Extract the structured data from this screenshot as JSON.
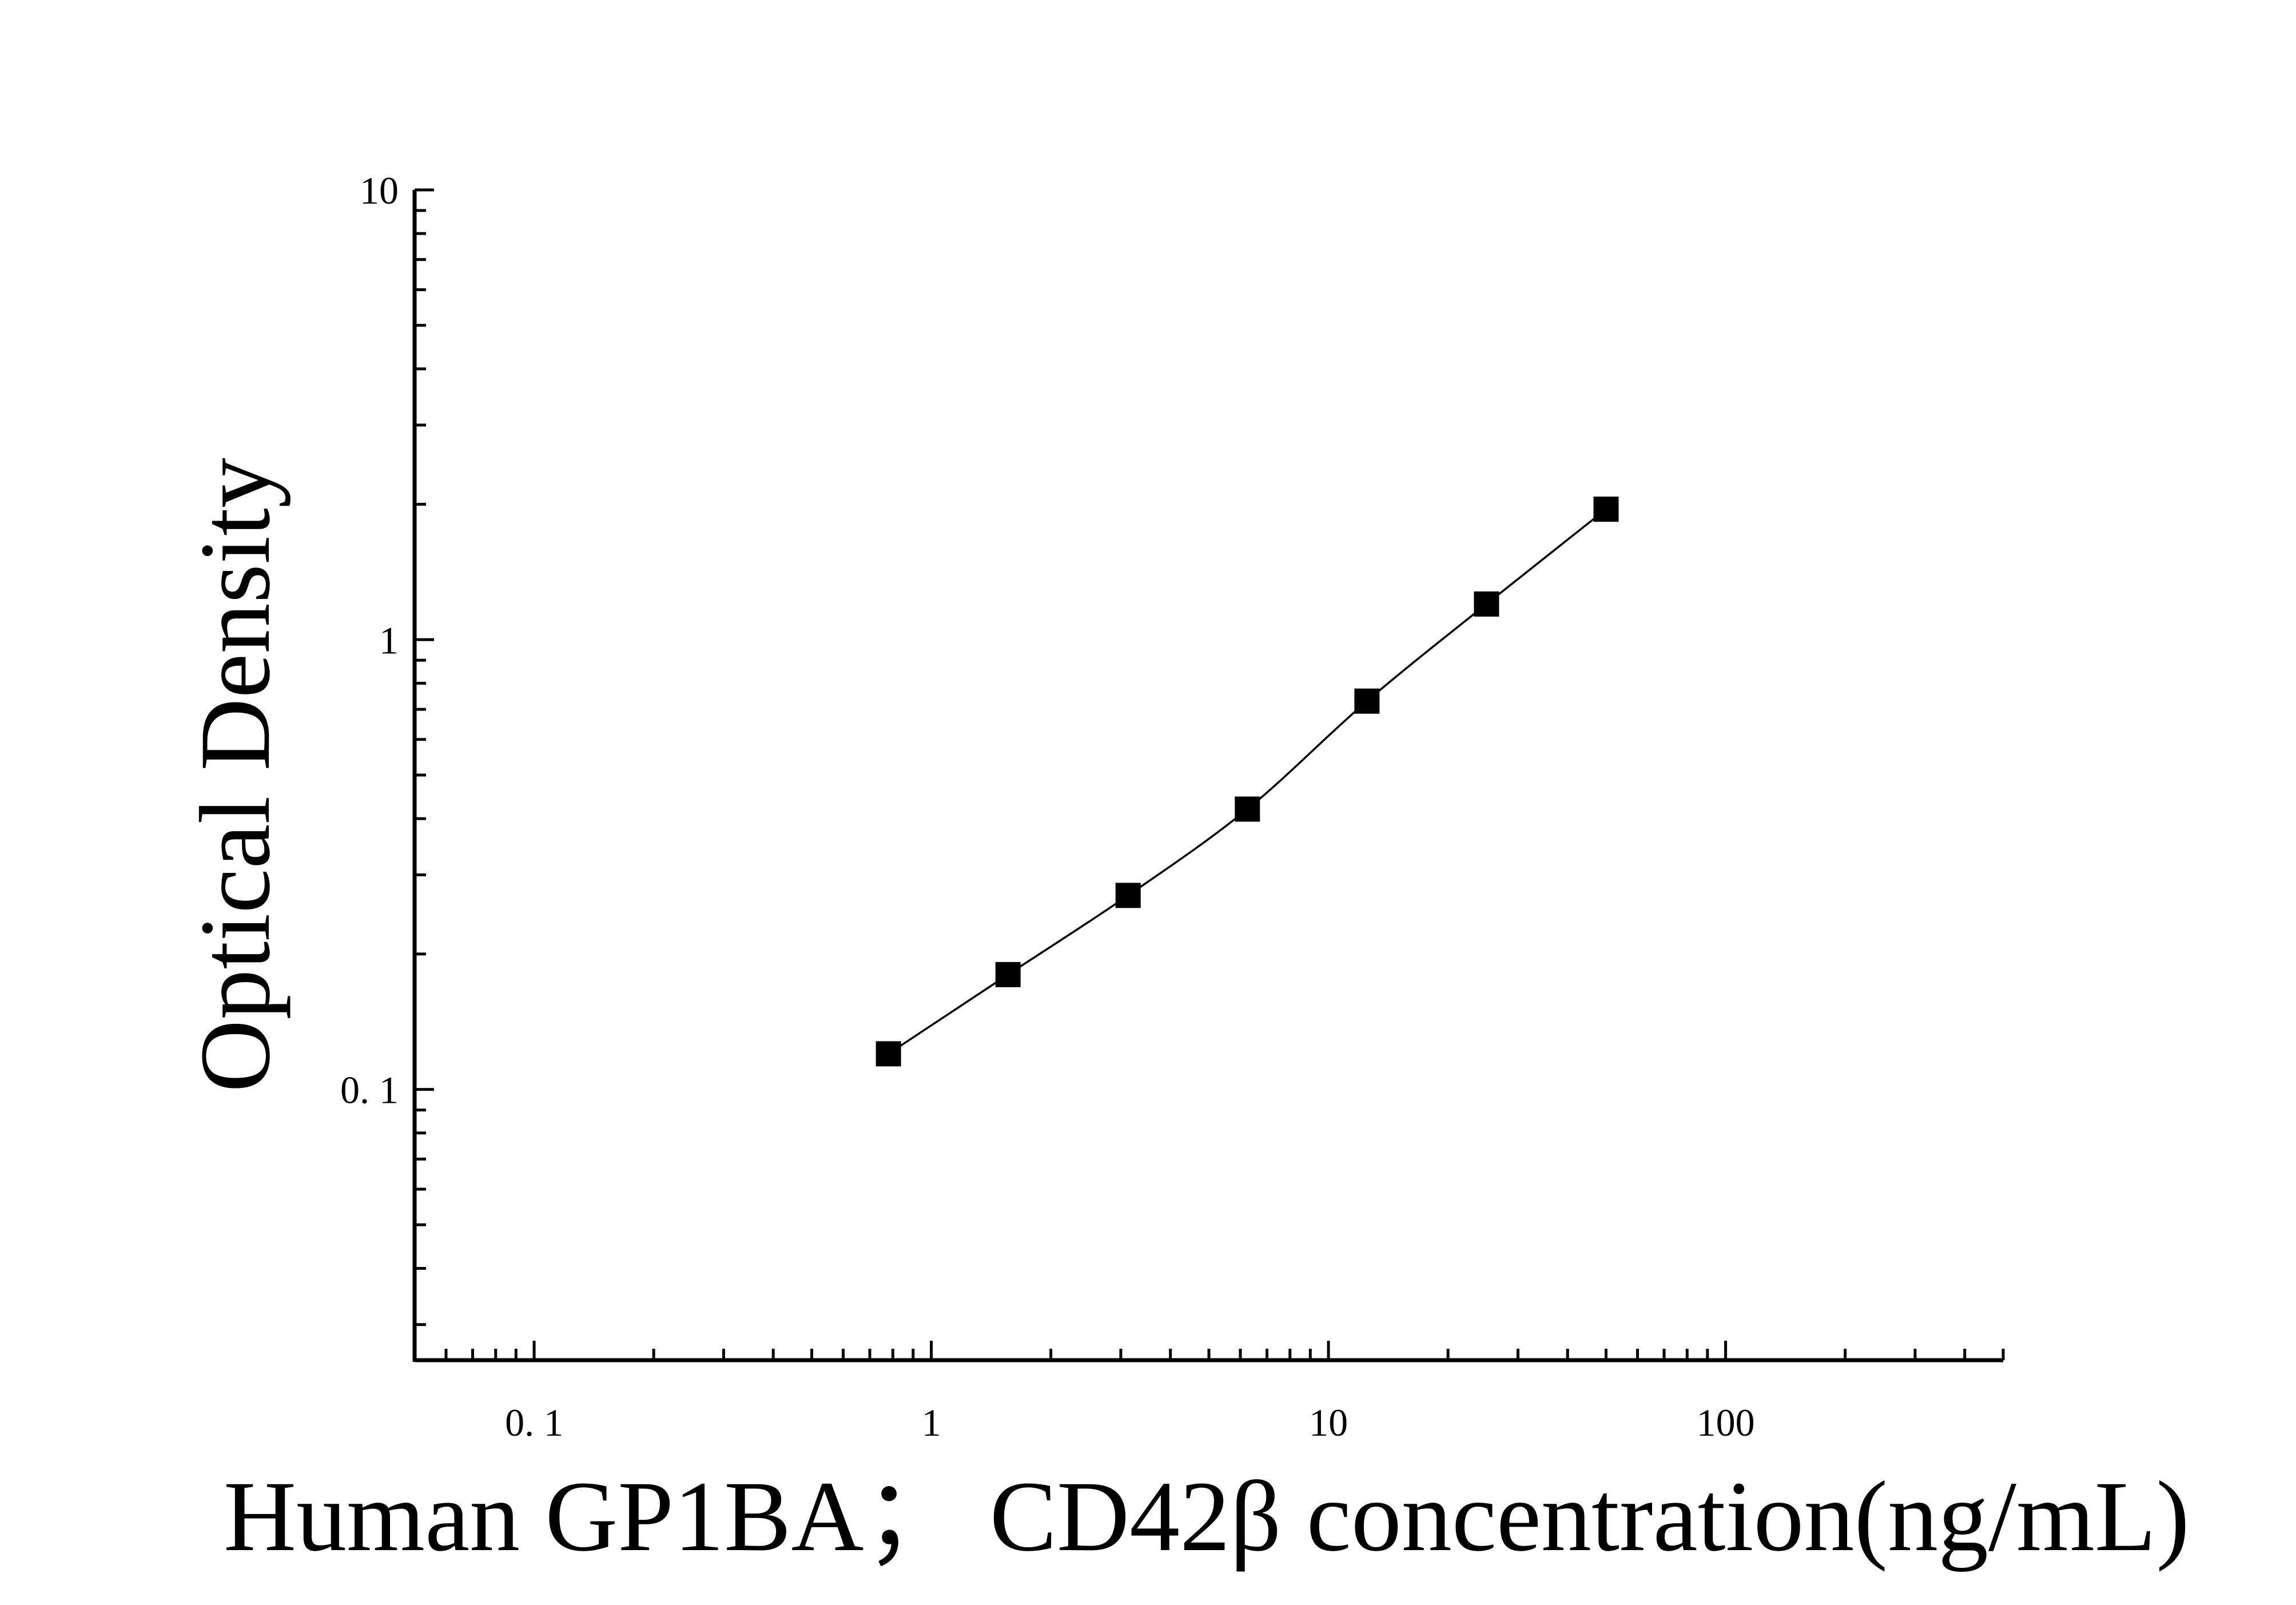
{
  "chart_data": {
    "type": "scatter",
    "title": "",
    "xlabel": "Human GP1BA；  CD42β concentration(ng/mL)",
    "ylabel": "Optical Density",
    "x_scale": "log",
    "y_scale": "log",
    "xlim": [
      0.05,
      500
    ],
    "ylim": [
      0.025,
      10
    ],
    "x_ticks": [
      {
        "value": 0.1,
        "label": "0. 1"
      },
      {
        "value": 1,
        "label": "1"
      },
      {
        "value": 10,
        "label": "10"
      },
      {
        "value": 100,
        "label": "100"
      }
    ],
    "y_ticks": [
      {
        "value": 0.1,
        "label": "0. 1"
      },
      {
        "value": 1,
        "label": "1"
      },
      {
        "value": 10,
        "label": "10"
      }
    ],
    "grid": false,
    "legend": "none",
    "series": [
      {
        "marker": "square",
        "color": "#000000",
        "fit_line": true,
        "points": [
          {
            "x": 0.78,
            "y": 0.12
          },
          {
            "x": 1.56,
            "y": 0.18
          },
          {
            "x": 3.13,
            "y": 0.27
          },
          {
            "x": 6.25,
            "y": 0.42
          },
          {
            "x": 12.5,
            "y": 0.73
          },
          {
            "x": 25,
            "y": 1.2
          },
          {
            "x": 50,
            "y": 1.95
          }
        ]
      }
    ]
  }
}
